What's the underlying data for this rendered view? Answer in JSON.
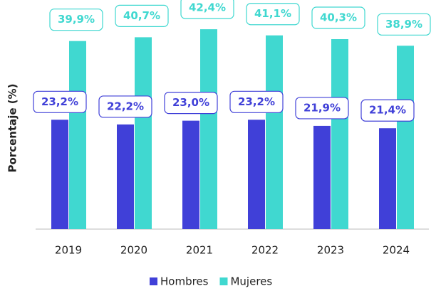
{
  "chart_data": {
    "type": "bar",
    "y_label": "Porcentaje (%)",
    "categories": [
      "2019",
      "2020",
      "2021",
      "2022",
      "2023",
      "2024"
    ],
    "series": [
      {
        "name": "Hombres",
        "color": "#4040d8",
        "values": [
          23.2,
          22.2,
          23.0,
          23.2,
          21.9,
          21.4
        ],
        "value_labels": [
          "23,2%",
          "22,2%",
          "23,0%",
          "23,2%",
          "21,9%",
          "21,4%"
        ]
      },
      {
        "name": "Mujeres",
        "color": "#40d8d0",
        "values": [
          39.9,
          40.7,
          42.4,
          41.1,
          40.3,
          38.9
        ],
        "value_labels": [
          "39,9%",
          "40,7%",
          "42,4%",
          "41,1%",
          "40,3%",
          "38,9%"
        ]
      }
    ],
    "ylim": [
      0,
      48
    ],
    "legend": "bottom"
  }
}
